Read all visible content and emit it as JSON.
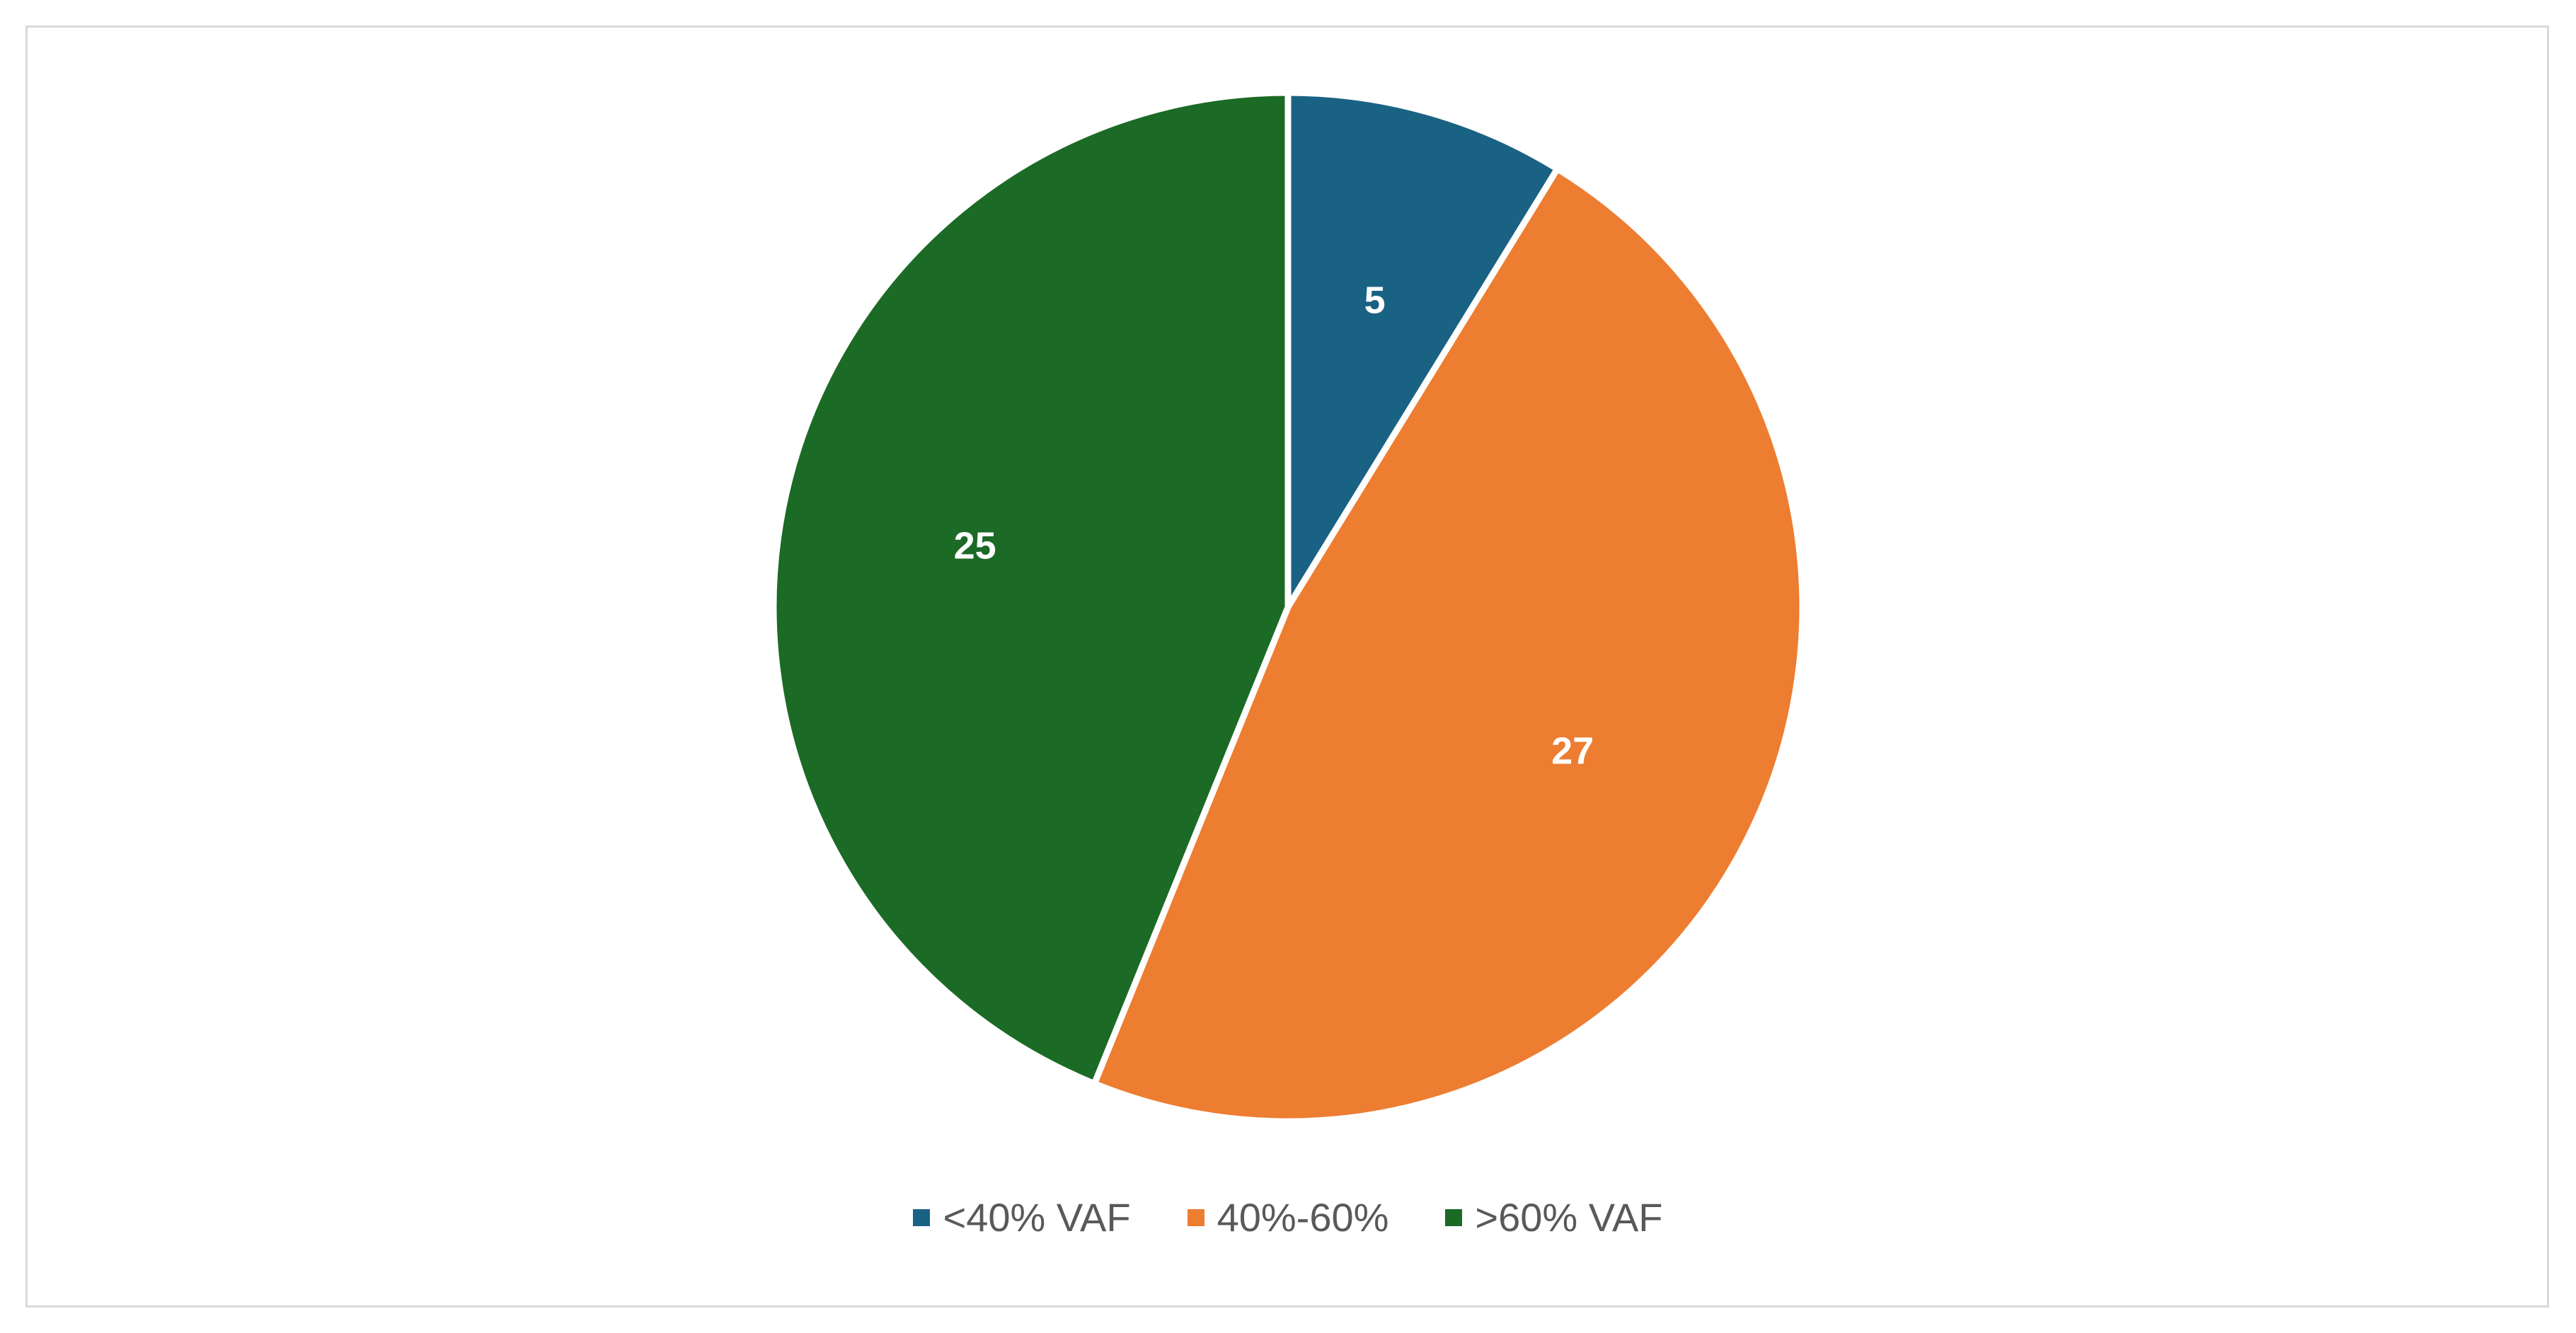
{
  "chart_data": {
    "type": "pie",
    "title": "",
    "slices": [
      {
        "label": "<40% VAF",
        "value": 5,
        "color": "#1a6284"
      },
      {
        "label": "40%-60%",
        "value": 27,
        "color": "#ed7d31"
      },
      {
        "label": ">60% VAF",
        "value": 25,
        "color": "#1b6a26"
      }
    ],
    "data_labels_shown": true,
    "start_angle": "12 o'clock",
    "direction": "clockwise",
    "legend_position": "bottom"
  }
}
